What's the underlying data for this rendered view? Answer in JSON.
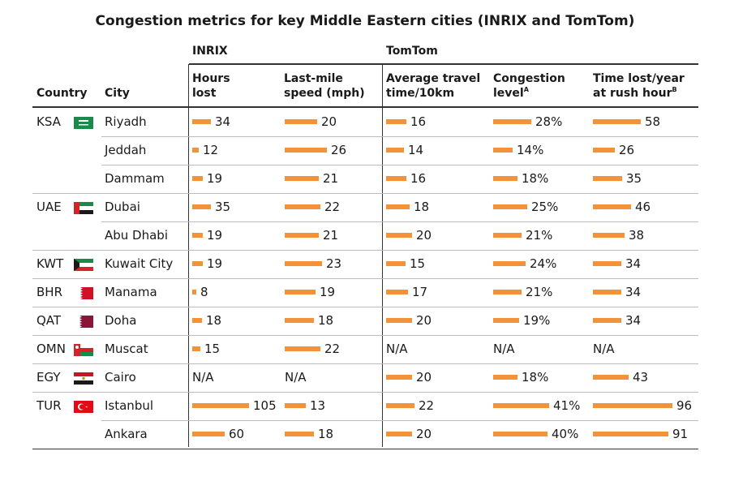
{
  "title": "Congestion metrics for key Middle Eastern cities (INRIX and TomTom)",
  "groups": {
    "inrix": "INRIX",
    "tomtom": "TomTom"
  },
  "headers": {
    "country": "Country",
    "city": "City",
    "hours_lost": [
      "Hours",
      "lost"
    ],
    "lastmile": [
      "Last-mile",
      "speed (mph)"
    ],
    "avg_travel": [
      "Average travel",
      "time/10km"
    ],
    "congestion": [
      "Congestion",
      "level",
      "A"
    ],
    "timelost": [
      "Time lost/year",
      "at rush hour",
      "B"
    ]
  },
  "colors": {
    "bar": "#f4923a",
    "rule": "#333333",
    "row_rule": "#bdbdbd"
  },
  "chart_data": {
    "type": "table",
    "title": "Congestion metrics for key Middle Eastern cities (INRIX and TomTom)",
    "columns": [
      "Hours lost",
      "Last-mile speed (mph)",
      "Average travel time/10km",
      "Congestion level",
      "Time lost/year at rush hour"
    ],
    "bar_max": {
      "hours": 105,
      "speed": 26,
      "travel": 22,
      "congestion": 41,
      "timelost": 96
    },
    "rows": [
      {
        "country": "KSA",
        "flag": "flag-saudi-arabia",
        "city": "Riyadh",
        "hours": 34,
        "speed": 20,
        "travel": 16,
        "congestion": 28,
        "timelost": 58
      },
      {
        "country": "",
        "flag": "",
        "city": "Jeddah",
        "hours": 12,
        "speed": 26,
        "travel": 14,
        "congestion": 14,
        "timelost": 26
      },
      {
        "country": "",
        "flag": "",
        "city": "Dammam",
        "hours": 19,
        "speed": 21,
        "travel": 16,
        "congestion": 18,
        "timelost": 35
      },
      {
        "country": "UAE",
        "flag": "flag-uae",
        "city": "Dubai",
        "hours": 35,
        "speed": 22,
        "travel": 18,
        "congestion": 25,
        "timelost": 46
      },
      {
        "country": "",
        "flag": "",
        "city": "Abu Dhabi",
        "hours": 19,
        "speed": 21,
        "travel": 20,
        "congestion": 21,
        "timelost": 38
      },
      {
        "country": "KWT",
        "flag": "flag-kuwait",
        "city": "Kuwait City",
        "hours": 19,
        "speed": 23,
        "travel": 15,
        "congestion": 24,
        "timelost": 34
      },
      {
        "country": "BHR",
        "flag": "flag-bahrain",
        "city": "Manama",
        "hours": 8,
        "speed": 19,
        "travel": 17,
        "congestion": 21,
        "timelost": 34
      },
      {
        "country": "QAT",
        "flag": "flag-qatar",
        "city": "Doha",
        "hours": 18,
        "speed": 18,
        "travel": 20,
        "congestion": 19,
        "timelost": 34
      },
      {
        "country": "OMN",
        "flag": "flag-oman",
        "city": "Muscat",
        "hours": 15,
        "speed": 22,
        "travel": "N/A",
        "congestion": "N/A",
        "timelost": "N/A"
      },
      {
        "country": "EGY",
        "flag": "flag-egypt",
        "city": "Cairo",
        "hours": "N/A",
        "speed": "N/A",
        "travel": 20,
        "congestion": 18,
        "timelost": 43
      },
      {
        "country": "TUR",
        "flag": "flag-turkey",
        "city": "Istanbul",
        "hours": 105,
        "speed": 13,
        "travel": 22,
        "congestion": 41,
        "timelost": 96
      },
      {
        "country": "",
        "flag": "",
        "city": "Ankara",
        "hours": 60,
        "speed": 18,
        "travel": 20,
        "congestion": 40,
        "timelost": 91
      }
    ]
  }
}
